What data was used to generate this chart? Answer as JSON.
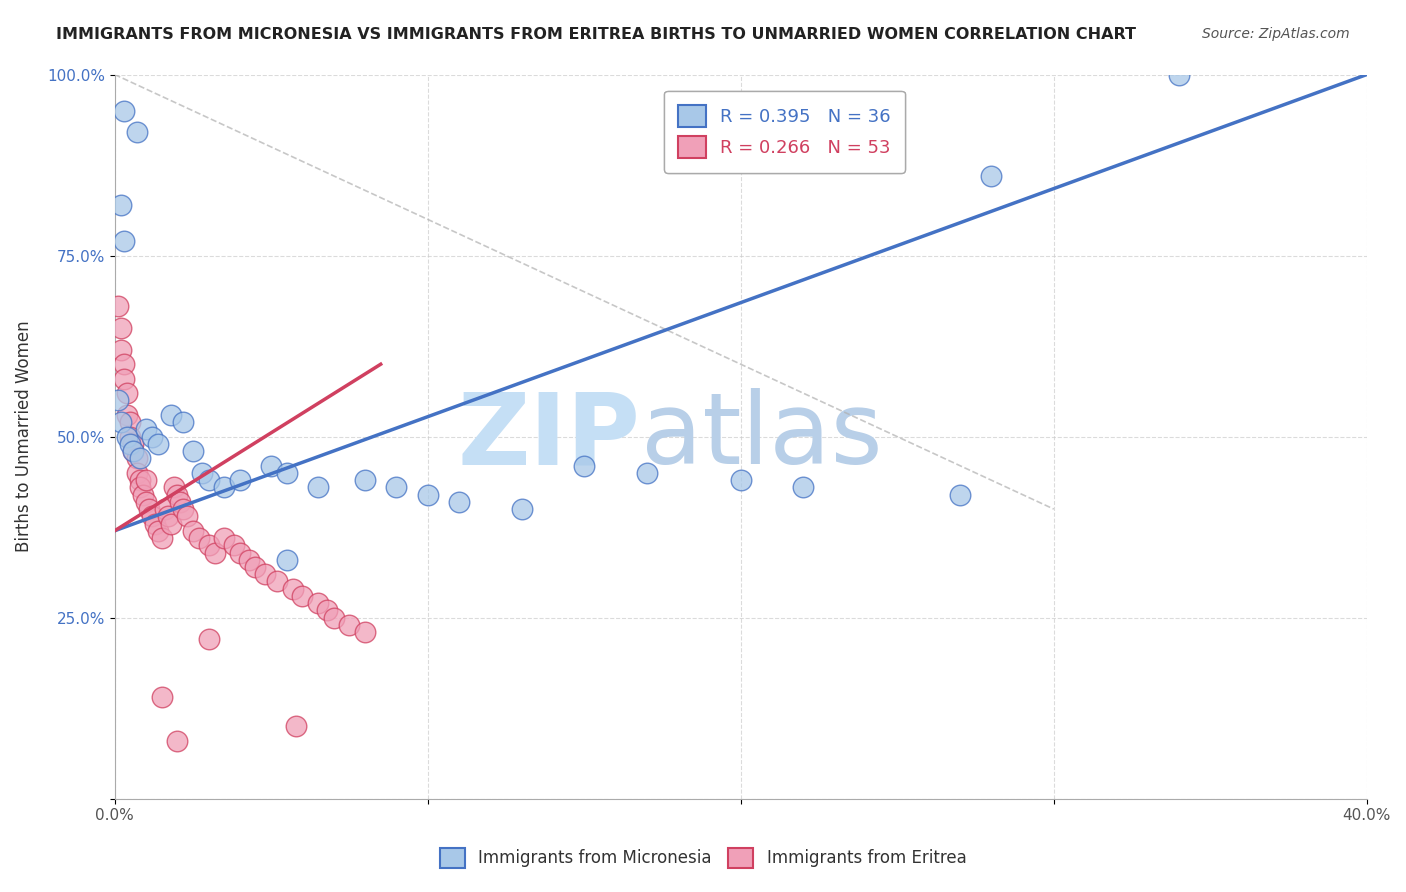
{
  "title": "IMMIGRANTS FROM MICRONESIA VS IMMIGRANTS FROM ERITREA BIRTHS TO UNMARRIED WOMEN CORRELATION CHART",
  "source": "Source: ZipAtlas.com",
  "ylabel": "Births to Unmarried Women",
  "xlim": [
    0.0,
    0.4
  ],
  "ylim": [
    0.0,
    1.0
  ],
  "legend1_label": "R = 0.395   N = 36",
  "legend2_label": "R = 0.266   N = 53",
  "color_micronesia": "#a8c8e8",
  "color_eritrea": "#f0a0b8",
  "line_color_micronesia": "#4472c4",
  "line_color_eritrea": "#d04060",
  "watermark_zip": "ZIP",
  "watermark_atlas": "atlas",
  "background_color": "#ffffff",
  "micronesia_x": [
    0.003,
    0.007,
    0.002,
    0.003,
    0.001,
    0.002,
    0.004,
    0.005,
    0.006,
    0.008,
    0.01,
    0.012,
    0.014,
    0.018,
    0.022,
    0.025,
    0.028,
    0.03,
    0.035,
    0.04,
    0.05,
    0.055,
    0.065,
    0.08,
    0.09,
    0.1,
    0.11,
    0.13,
    0.15,
    0.17,
    0.2,
    0.22,
    0.27,
    0.34,
    0.28,
    0.055
  ],
  "micronesia_y": [
    0.95,
    0.92,
    0.82,
    0.77,
    0.55,
    0.52,
    0.5,
    0.49,
    0.48,
    0.47,
    0.51,
    0.5,
    0.49,
    0.53,
    0.52,
    0.48,
    0.45,
    0.44,
    0.43,
    0.44,
    0.46,
    0.45,
    0.43,
    0.44,
    0.43,
    0.42,
    0.41,
    0.4,
    0.46,
    0.45,
    0.44,
    0.43,
    0.42,
    1.0,
    0.86,
    0.33
  ],
  "eritrea_x": [
    0.001,
    0.002,
    0.002,
    0.003,
    0.003,
    0.004,
    0.004,
    0.005,
    0.005,
    0.006,
    0.006,
    0.007,
    0.007,
    0.008,
    0.008,
    0.009,
    0.01,
    0.01,
    0.011,
    0.012,
    0.013,
    0.014,
    0.015,
    0.016,
    0.017,
    0.018,
    0.019,
    0.02,
    0.021,
    0.022,
    0.023,
    0.025,
    0.027,
    0.03,
    0.032,
    0.035,
    0.038,
    0.04,
    0.043,
    0.045,
    0.048,
    0.052,
    0.057,
    0.06,
    0.065,
    0.068,
    0.07,
    0.075,
    0.08,
    0.058,
    0.02,
    0.03,
    0.015
  ],
  "eritrea_y": [
    0.68,
    0.65,
    0.62,
    0.6,
    0.58,
    0.56,
    0.53,
    0.52,
    0.5,
    0.49,
    0.48,
    0.47,
    0.45,
    0.44,
    0.43,
    0.42,
    0.44,
    0.41,
    0.4,
    0.39,
    0.38,
    0.37,
    0.36,
    0.4,
    0.39,
    0.38,
    0.43,
    0.42,
    0.41,
    0.4,
    0.39,
    0.37,
    0.36,
    0.35,
    0.34,
    0.36,
    0.35,
    0.34,
    0.33,
    0.32,
    0.31,
    0.3,
    0.29,
    0.28,
    0.27,
    0.26,
    0.25,
    0.24,
    0.23,
    0.1,
    0.08,
    0.22,
    0.14
  ],
  "blue_line_x": [
    0.0,
    0.4
  ],
  "blue_line_y": [
    0.37,
    1.0
  ],
  "pink_line_x": [
    0.0,
    0.085
  ],
  "pink_line_y": [
    0.37,
    0.6
  ],
  "dash_line_x": [
    0.0,
    0.3
  ],
  "dash_line_y": [
    1.0,
    0.4
  ]
}
